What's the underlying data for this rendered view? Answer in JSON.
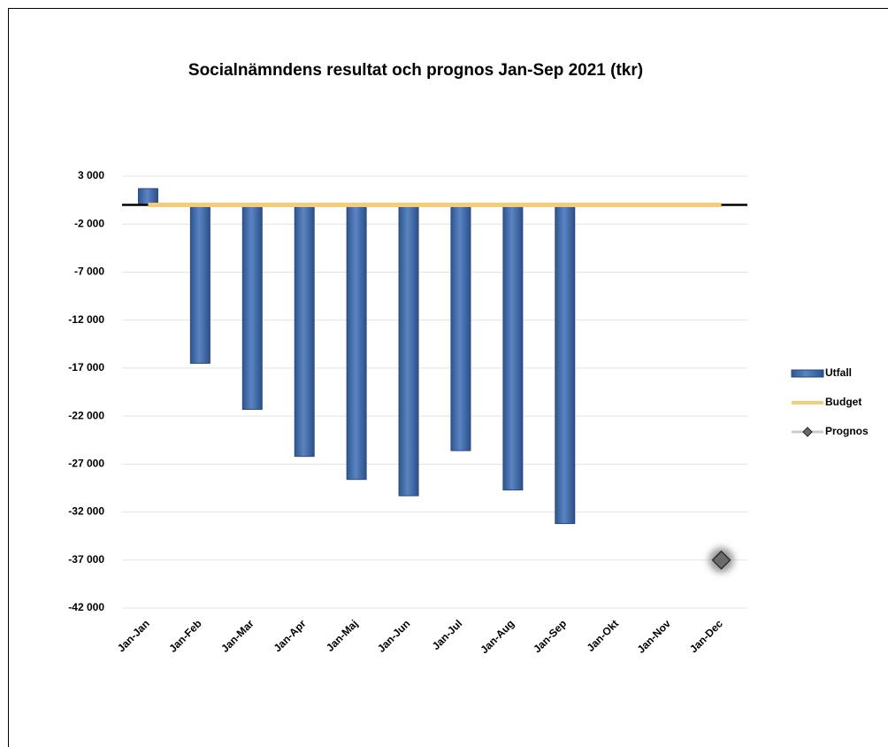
{
  "chart_data": {
    "type": "bar",
    "title": "Socialnämndens resultat och prognos  Jan-Sep 2021 (tkr)",
    "categories": [
      "Jan-Jan",
      "Jan-Feb",
      "Jan-Mar",
      "Jan-Apr",
      "Jan-Maj",
      "Jan-Jun",
      "Jan-Jul",
      "Jan-Aug",
      "Jan-Sep",
      "Jan-Okt",
      "Jan-Nov",
      "Jan-Dec"
    ],
    "series": [
      {
        "name": "Utfall",
        "type": "bar",
        "color": "#3f68a6",
        "values": [
          1700,
          -16500,
          -21300,
          -26200,
          -28600,
          -30300,
          -25600,
          -29700,
          -33200,
          null,
          null,
          null
        ]
      },
      {
        "name": "Budget",
        "type": "line",
        "color": "#f5cd7a",
        "values": [
          0,
          0,
          0,
          0,
          0,
          0,
          0,
          0,
          0,
          0,
          0,
          0
        ]
      },
      {
        "name": "Prognos",
        "type": "marker",
        "color": "#6b6b6b",
        "values": [
          null,
          null,
          null,
          null,
          null,
          null,
          null,
          null,
          null,
          null,
          null,
          -37000
        ]
      }
    ],
    "ylim": [
      -42000,
      3000
    ],
    "yticks": [
      {
        "value": 3000,
        "label": "3 000"
      },
      {
        "value": -2000,
        "label": "-2 000"
      },
      {
        "value": -7000,
        "label": "-7 000"
      },
      {
        "value": -12000,
        "label": "-12 000"
      },
      {
        "value": -17000,
        "label": "-17 000"
      },
      {
        "value": -22000,
        "label": "-22 000"
      },
      {
        "value": -27000,
        "label": "-27 000"
      },
      {
        "value": -32000,
        "label": "-32 000"
      },
      {
        "value": -37000,
        "label": "-37 000"
      },
      {
        "value": -42000,
        "label": "-42 000"
      }
    ],
    "grid": true,
    "legend": "right"
  }
}
